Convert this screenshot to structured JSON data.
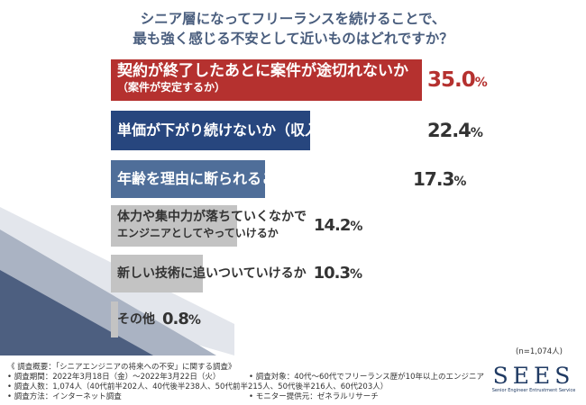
{
  "title": {
    "line1": "シニア層になってフリーランスを続けることで、",
    "line2": "最も強く感じる不安として近いものはどれですか？"
  },
  "chart_data": {
    "type": "bar",
    "orientation": "horizontal",
    "unit": "%",
    "categories": [
      [
        "契約が終了したあとに案件が途切れないか",
        "（案件が安定するか）"
      ],
      [
        "単価が下がり続けないか（収入が減らないか）"
      ],
      [
        "年齢を理由に断られることが多くならないか"
      ],
      [
        "体力や集中力が落ちていくなかで",
        "エンジニアとしてやっていけるか"
      ],
      [
        "新しい技術に追いついていけるか"
      ],
      [
        "その他"
      ]
    ],
    "values": [
      35.0,
      22.4,
      17.3,
      14.2,
      10.3,
      0.8
    ],
    "value_labels": [
      "35.0",
      "22.4",
      "17.3",
      "14.2",
      "10.3",
      "0.8"
    ],
    "value_suffix": "%",
    "bar_colors": [
      "#b5312f",
      "#27467e",
      "#4f6e99",
      "#c3c3c3",
      "#c3c3c3",
      "#c3c3c3"
    ],
    "label_colors": [
      "#ffffff",
      "#ffffff",
      "#ffffff",
      "#333333",
      "#333333",
      "#333333"
    ],
    "xlim": [
      0,
      35
    ],
    "grid": false,
    "legend": "none"
  },
  "sample_note": "(n=1,074人)",
  "survey": {
    "overview": "《 調査概要：「シニアエンジニアの将来への不安」に関する調査》",
    "period": "• 調査期間：2022年3月18日（金）〜2022年3月22日（火）",
    "target": "• 調査対象：40代〜60代でフリーランス歴が10年以上のエンジニア",
    "respondents": "• 調査人数：1,074人（40代前半202人、40代後半238人、50代前半215人、50代後半216人、60代203人）",
    "method": "• 調査方法：インターネット調査",
    "provider": "• モニター提供元：ゼネラルリサーチ"
  },
  "logo": {
    "mark": "SEES",
    "tagline": "Senior Engineer Entrustment Service"
  },
  "colors": {
    "title": "#4a5e7e",
    "accent_red": "#b5312f",
    "navy": "#27467e",
    "steel": "#4f6e99",
    "gray": "#c3c3c3"
  }
}
